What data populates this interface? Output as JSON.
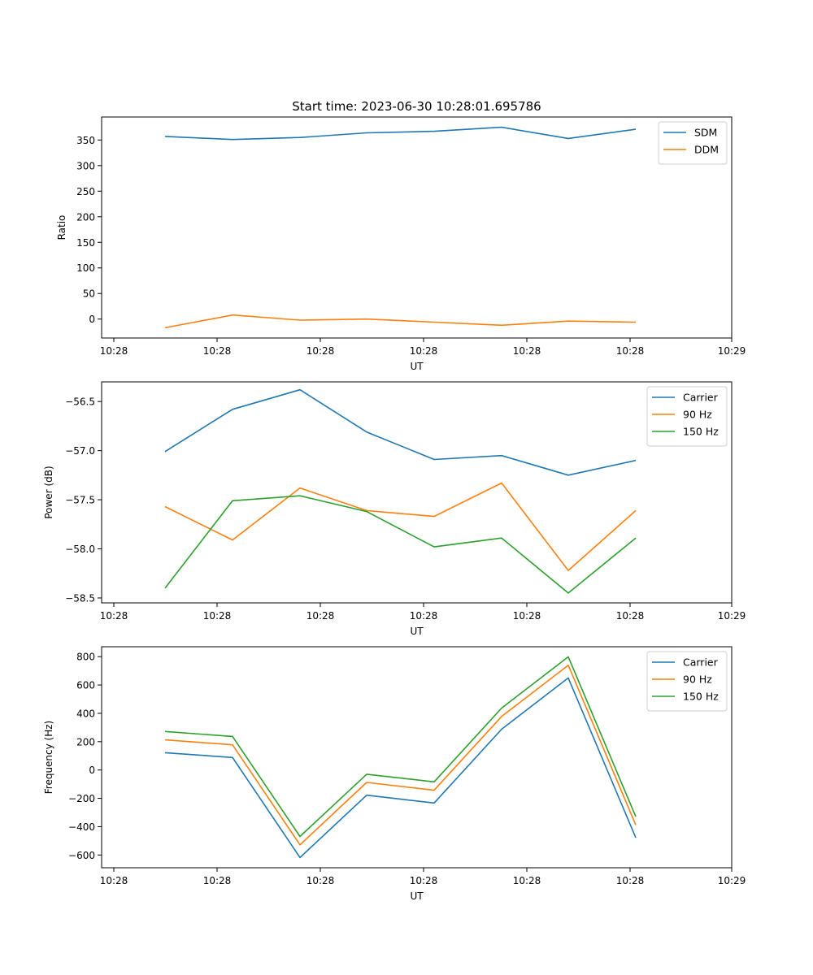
{
  "figure": {
    "title": "Start time: 2023-06-30 10:28:01.695786"
  },
  "colors": {
    "blue": "#1f77b4",
    "orange": "#ff7f0e",
    "green": "#2ca02c"
  },
  "chart_data": [
    {
      "type": "line",
      "xlabel": "UT",
      "ylabel": "Ratio",
      "x_tick_labels": [
        "10:28",
        "10:28",
        "10:28",
        "10:28",
        "10:28",
        "10:28",
        "10:29"
      ],
      "yticks": [
        0,
        50,
        100,
        150,
        200,
        250,
        300,
        350
      ],
      "ylim": [
        -37,
        395
      ],
      "legend": "top-right",
      "series": [
        {
          "name": "SDM",
          "color": "#1f77b4",
          "values": [
            357,
            351,
            355,
            364,
            367,
            375,
            353,
            371
          ]
        },
        {
          "name": "DDM",
          "color": "#ff7f0e",
          "values": [
            -17,
            8,
            -2,
            0,
            -6,
            -12,
            -4,
            -6
          ]
        }
      ]
    },
    {
      "type": "line",
      "xlabel": "UT",
      "ylabel": "Power (dB)",
      "x_tick_labels": [
        "10:28",
        "10:28",
        "10:28",
        "10:28",
        "10:28",
        "10:28",
        "10:29"
      ],
      "yticks": [
        -58.5,
        -58.0,
        -57.5,
        -57.0,
        -56.5
      ],
      "ytick_labels": [
        "−58.5",
        "−58.0",
        "−57.5",
        "−57.0",
        "−56.5"
      ],
      "ylim": [
        -58.55,
        -56.3
      ],
      "legend": "top-right",
      "series": [
        {
          "name": "Carrier",
          "color": "#1f77b4",
          "values": [
            -57.01,
            -56.58,
            -56.38,
            -56.81,
            -57.09,
            -57.05,
            -57.25,
            -57.1
          ]
        },
        {
          "name": "90 Hz",
          "color": "#ff7f0e",
          "values": [
            -57.57,
            -57.91,
            -57.38,
            -57.61,
            -57.67,
            -57.33,
            -58.22,
            -57.61
          ]
        },
        {
          "name": "150 Hz",
          "color": "#2ca02c",
          "values": [
            -58.4,
            -57.51,
            -57.46,
            -57.62,
            -57.98,
            -57.89,
            -58.45,
            -57.89
          ]
        }
      ]
    },
    {
      "type": "line",
      "xlabel": "UT",
      "ylabel": "Frequency (Hz)",
      "x_tick_labels": [
        "10:28",
        "10:28",
        "10:28",
        "10:28",
        "10:28",
        "10:28",
        "10:29"
      ],
      "yticks": [
        -600,
        -400,
        -200,
        0,
        200,
        400,
        600,
        800
      ],
      "ytick_labels": [
        "−600",
        "−400",
        "−200",
        "0",
        "200",
        "400",
        "600",
        "800"
      ],
      "ylim": [
        -690,
        870
      ],
      "legend": "top-right",
      "series": [
        {
          "name": "Carrier",
          "color": "#1f77b4",
          "values": [
            122,
            88,
            -618,
            -178,
            -233,
            288,
            650,
            -478
          ]
        },
        {
          "name": "90 Hz",
          "color": "#ff7f0e",
          "values": [
            213,
            178,
            -528,
            -88,
            -143,
            378,
            740,
            -388
          ]
        },
        {
          "name": "150 Hz",
          "color": "#2ca02c",
          "values": [
            272,
            237,
            -469,
            -30,
            -84,
            437,
            799,
            -329
          ]
        }
      ]
    }
  ]
}
